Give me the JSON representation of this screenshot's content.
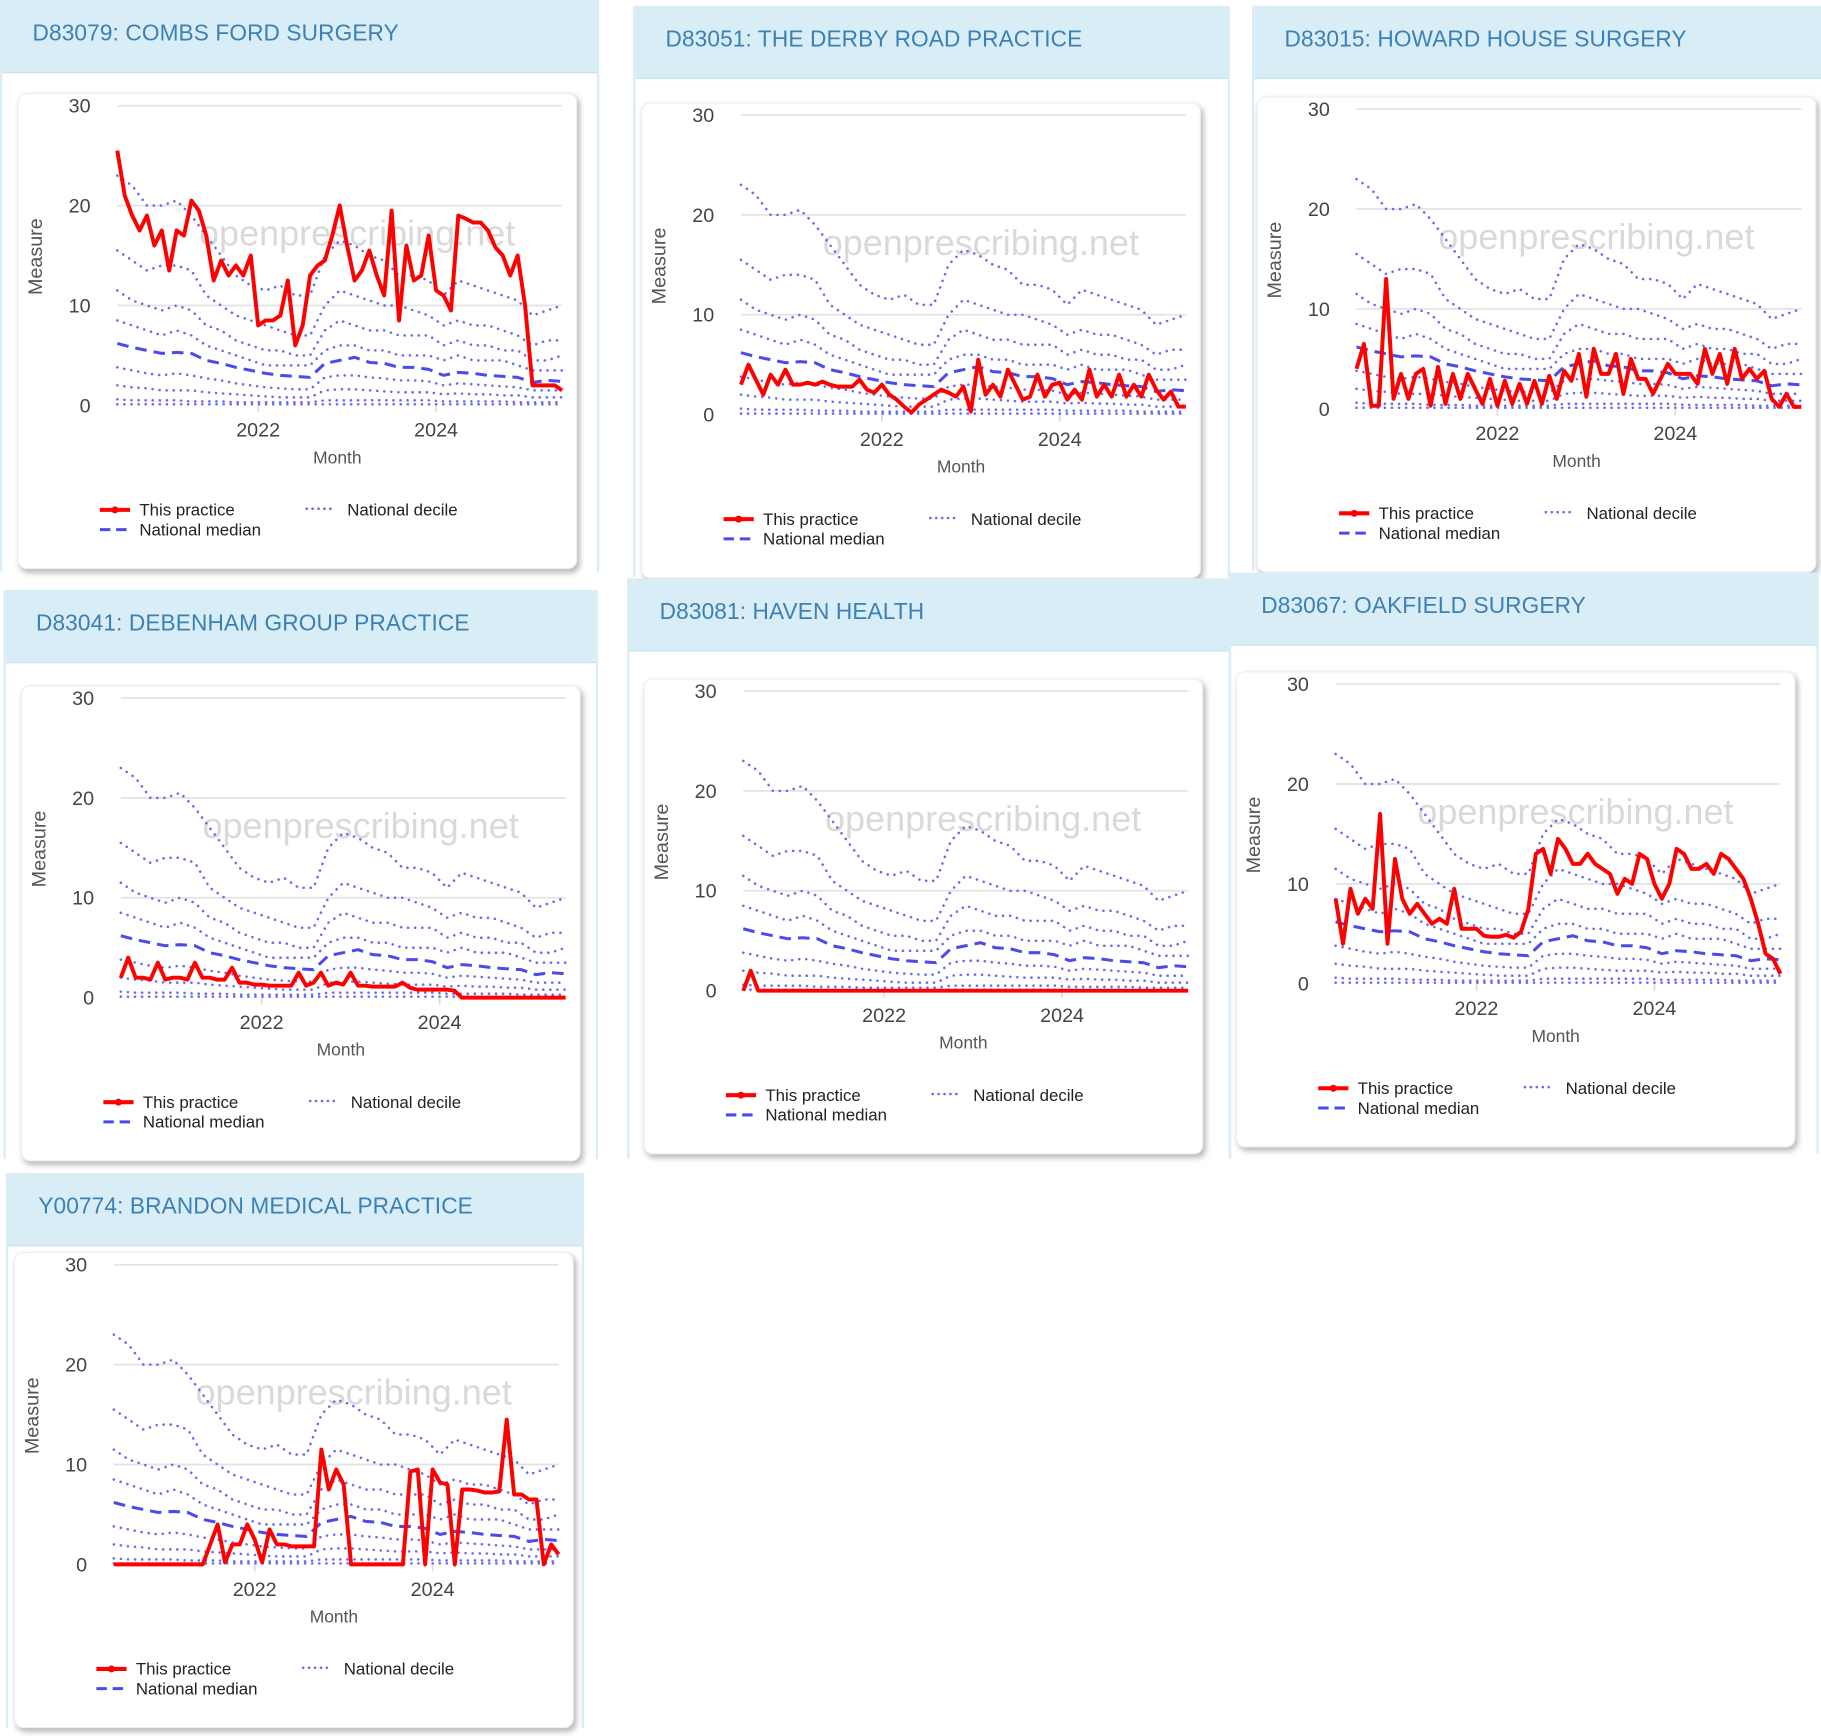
{
  "watermark": "openprescribing.net",
  "chart_data": {
    "type": "line",
    "xlabel": "Month",
    "ylabel": "Measure",
    "ylim": [
      0,
      30
    ],
    "yticks": [
      "0",
      "10",
      "20",
      "30"
    ],
    "xticks": [
      "2022",
      "2024"
    ],
    "xtick_months": [
      "2022-01",
      "2024-01"
    ],
    "grid": true,
    "legend_position": "bottom",
    "legend": {
      "practice": "This practice",
      "decile": "National decile",
      "median": "National median"
    },
    "colors": {
      "practice": "#ff0000",
      "decile": "#6b6bf0",
      "median": "#4b4bec"
    },
    "months": [
      "2020-06",
      "2020-07",
      "2020-08",
      "2020-09",
      "2020-10",
      "2020-11",
      "2020-12",
      "2021-01",
      "2021-02",
      "2021-03",
      "2021-04",
      "2021-05",
      "2021-06",
      "2021-07",
      "2021-08",
      "2021-09",
      "2021-10",
      "2021-11",
      "2021-12",
      "2022-01",
      "2022-02",
      "2022-03",
      "2022-04",
      "2022-05",
      "2022-06",
      "2022-07",
      "2022-08",
      "2022-09",
      "2022-10",
      "2022-11",
      "2022-12",
      "2023-01",
      "2023-02",
      "2023-03",
      "2023-04",
      "2023-05",
      "2023-06",
      "2023-07",
      "2023-08",
      "2023-09",
      "2023-10",
      "2023-11",
      "2023-12",
      "2024-01",
      "2024-02",
      "2024-03",
      "2024-04",
      "2024-05",
      "2024-06",
      "2024-07",
      "2024-08",
      "2024-09",
      "2024-10",
      "2024-11",
      "2024-12",
      "2025-01",
      "2025-02",
      "2025-03",
      "2025-04",
      "2025-05",
      "2025-06"
    ],
    "decile_months": [
      "2020-06",
      "2020-08",
      "2020-10",
      "2020-12",
      "2021-02",
      "2021-04",
      "2021-06",
      "2021-08",
      "2021-10",
      "2021-12",
      "2022-02",
      "2022-04",
      "2022-06",
      "2022-08",
      "2022-10",
      "2022-12",
      "2023-02",
      "2023-04",
      "2023-06",
      "2023-08",
      "2023-10",
      "2023-12",
      "2024-02",
      "2024-04",
      "2024-06",
      "2024-08",
      "2024-10",
      "2024-12",
      "2025-02",
      "2025-04",
      "2025-06"
    ],
    "national_deciles": [
      {
        "decile": 10,
        "values": [
          0.1,
          0.1,
          0.1,
          0.1,
          0.1,
          0.1,
          0.1,
          0.1,
          0.1,
          0.1,
          0.1,
          0.1,
          0.1,
          0.1,
          0.1,
          0.1,
          0.1,
          0.1,
          0.1,
          0.1,
          0.1,
          0.1,
          0.1,
          0.1,
          0.1,
          0.1,
          0.1,
          0.1,
          0.1,
          0.1,
          0.1
        ]
      },
      {
        "decile": 20,
        "values": [
          0.6,
          0.5,
          0.5,
          0.5,
          0.5,
          0.4,
          0.4,
          0.4,
          0.3,
          0.3,
          0.3,
          0.3,
          0.3,
          0.3,
          0.5,
          0.5,
          0.5,
          0.5,
          0.5,
          0.5,
          0.5,
          0.5,
          0.4,
          0.4,
          0.4,
          0.4,
          0.4,
          0.3,
          0.3,
          0.3,
          0.3
        ]
      },
      {
        "decile": 30,
        "values": [
          2,
          1.8,
          1.7,
          1.5,
          1.5,
          1.5,
          1.3,
          1.2,
          1.1,
          1,
          0.9,
          0.8,
          0.8,
          0.8,
          1.5,
          1.6,
          1.6,
          1.5,
          1.4,
          1.3,
          1.3,
          1.3,
          1.1,
          1.2,
          1.1,
          1.1,
          1,
          1,
          0.8,
          0.8,
          0.8
        ]
      },
      {
        "decile": 40,
        "values": [
          3.8,
          3.5,
          3.2,
          3,
          3.2,
          3,
          2.7,
          2.5,
          2.2,
          2,
          1.8,
          1.7,
          1.6,
          1.6,
          2.8,
          3,
          3,
          2.8,
          2.7,
          2.5,
          2.5,
          2.4,
          2,
          2.2,
          2.1,
          2,
          1.9,
          1.8,
          1.5,
          1.5,
          1.5
        ]
      },
      {
        "decile": 60,
        "values": [
          8.5,
          8,
          7.5,
          7,
          7.5,
          7,
          6,
          5.5,
          5,
          4.5,
          4,
          4,
          4,
          4,
          5.5,
          6,
          6,
          5.5,
          5.5,
          5,
          5,
          5,
          4.5,
          5,
          4.5,
          4.5,
          4.5,
          4,
          3.5,
          3.5,
          3.5
        ]
      },
      {
        "decile": 70,
        "values": [
          11.5,
          10.5,
          10,
          9.5,
          10,
          9.5,
          8,
          7.5,
          6.5,
          6,
          5.5,
          5.5,
          5,
          5,
          7.5,
          8.5,
          8,
          7.5,
          7.5,
          7,
          7,
          7,
          6,
          6.5,
          6,
          6,
          5.5,
          5.5,
          4.5,
          4.5,
          5
        ]
      },
      {
        "decile": 80,
        "values": [
          15.5,
          14.5,
          13.5,
          14,
          14,
          13.5,
          11,
          10,
          9,
          8.5,
          8,
          7.5,
          7,
          7,
          10,
          11.5,
          11,
          10.5,
          10,
          10,
          9.5,
          9,
          8,
          8.5,
          8,
          8,
          7.5,
          7,
          6,
          6.5,
          6.5
        ]
      },
      {
        "decile": 90,
        "values": [
          23,
          22,
          20,
          20,
          20.5,
          19,
          17,
          15,
          13,
          12,
          11.5,
          12,
          11,
          11,
          15,
          16.5,
          16,
          15,
          14.5,
          13,
          13,
          12.5,
          11,
          12.5,
          12,
          11.5,
          11,
          10.5,
          9,
          9.5,
          10
        ]
      }
    ],
    "national_median": [
      6.2,
      5.8,
      5.5,
      5.2,
      5.3,
      5.2,
      4.5,
      4.2,
      3.8,
      3.5,
      3.2,
      3.0,
      2.9,
      2.8,
      4.2,
      4.5,
      4.8,
      4.3,
      4.2,
      3.8,
      3.8,
      3.6,
      3.0,
      3.3,
      3.2,
      3.0,
      2.9,
      2.8,
      2.3,
      2.5,
      2.4
    ],
    "practices": [
      {
        "title": "D83079: COMBS FORD SURGERY",
        "values": [
          25.5,
          21,
          19,
          17.5,
          19,
          16,
          17.5,
          13.5,
          17.5,
          17,
          20.5,
          19.5,
          17,
          12.5,
          14.5,
          13,
          14,
          13,
          15,
          8,
          8.5,
          8.5,
          9,
          12.5,
          6,
          8,
          13,
          14,
          14.5,
          17,
          20,
          16,
          12.5,
          13.5,
          15.5,
          13,
          11,
          19.5,
          8.5,
          16,
          12.5,
          13,
          17,
          11.5,
          11,
          9.5,
          19,
          18.7,
          18.3,
          18.3,
          17.5,
          15.8,
          15,
          13,
          15,
          10,
          2,
          2,
          2,
          2,
          1.5
        ]
      },
      {
        "title": "D83051: THE DERBY ROAD PRACTICE",
        "values": [
          3,
          5,
          3.5,
          2,
          4,
          3,
          4.5,
          3,
          3,
          3.2,
          3,
          3.3,
          3,
          2.8,
          2.8,
          2.8,
          3.5,
          2.5,
          2.2,
          3,
          2,
          1.5,
          0.8,
          0.2,
          1,
          1.5,
          2,
          2.5,
          2.2,
          1.8,
          2.8,
          0.3,
          5.5,
          2,
          3,
          1.8,
          4.5,
          3,
          1.5,
          1.8,
          4,
          1.8,
          3,
          3.2,
          1.5,
          2.5,
          1.5,
          4.5,
          1.8,
          3,
          1.8,
          4,
          1.8,
          3,
          1.8,
          4,
          2.5,
          1.5,
          2.3,
          0.8,
          0.8
        ]
      },
      {
        "title": "D83015: HOWARD HOUSE SURGERY",
        "values": [
          4,
          6.5,
          0.3,
          0.3,
          13,
          1,
          3.5,
          1,
          3.5,
          4,
          0.3,
          4.2,
          0.5,
          3.5,
          1,
          3.5,
          2,
          0.5,
          3,
          0.3,
          2.8,
          0.5,
          2.5,
          0.5,
          2.8,
          0.5,
          3.3,
          1,
          3.8,
          2.8,
          5.5,
          1.2,
          6,
          3.5,
          3.5,
          5.5,
          1.5,
          5,
          3,
          3,
          1.5,
          3,
          4.5,
          3.5,
          3.5,
          3.5,
          2.5,
          6,
          3.5,
          5.5,
          2.5,
          6,
          3,
          4,
          3,
          3.8,
          1,
          0.2,
          1.5,
          0.2,
          0.2
        ]
      },
      {
        "title": "D83041: DEBENHAM GROUP PRACTICE",
        "values": [
          2,
          4,
          2,
          2,
          1.8,
          3.5,
          1.8,
          2,
          2,
          1.8,
          3.5,
          2,
          2,
          1.8,
          1.8,
          3,
          1.5,
          1.5,
          1.3,
          1.3,
          1.2,
          1.2,
          1.2,
          1.2,
          2.5,
          1.2,
          1.5,
          2.5,
          1.2,
          1.5,
          1.3,
          2.5,
          1.2,
          1.2,
          1.1,
          1.1,
          1.1,
          1.1,
          1.5,
          1,
          0.8,
          0.8,
          0.8,
          0.8,
          0.8,
          0.7,
          0,
          0,
          0,
          0,
          0,
          0,
          0,
          0,
          0,
          0,
          0,
          0,
          0,
          0,
          0
        ]
      },
      {
        "title": "D83081: HAVEN HEALTH",
        "values": [
          0,
          2,
          0,
          0,
          0,
          0,
          0,
          0,
          0,
          0,
          0,
          0,
          0,
          0,
          0,
          0,
          0,
          0,
          0,
          0,
          0,
          0,
          0,
          0,
          0,
          0,
          0,
          0,
          0,
          0,
          0,
          0,
          0,
          0,
          0,
          0,
          0,
          0,
          0,
          0,
          0,
          0,
          0,
          0,
          0,
          0,
          0,
          0,
          0,
          0,
          0,
          0,
          0,
          0,
          0,
          0,
          0,
          0,
          0,
          0,
          0
        ]
      },
      {
        "title": "D83067: OAKFIELD SURGERY",
        "values": [
          8.5,
          4,
          9.5,
          7,
          8.5,
          7.5,
          17,
          4,
          12.5,
          8.5,
          7,
          8,
          7,
          6,
          6.5,
          6,
          9.5,
          5.5,
          5.5,
          5.5,
          4.8,
          4.7,
          4.7,
          4.9,
          4.6,
          5.2,
          7.5,
          13,
          13.5,
          11,
          14.5,
          13.5,
          12,
          12,
          13,
          12,
          11.5,
          11,
          9,
          10.5,
          10,
          13,
          12.5,
          10,
          8.5,
          10,
          13.5,
          13,
          11.5,
          11.5,
          12,
          11,
          13,
          12.5,
          11.5,
          10.5,
          8.5,
          6,
          3,
          2.5,
          1
        ]
      },
      {
        "title": "Y00774: BRANDON MEDICAL PRACTICE",
        "values": [
          0,
          0,
          0,
          0,
          0,
          0,
          0,
          0,
          0,
          0,
          0,
          0,
          0,
          2,
          4,
          0.2,
          2,
          2,
          4,
          2.5,
          0.2,
          3.5,
          2,
          2,
          1.8,
          1.8,
          1.8,
          1.8,
          11.5,
          7.5,
          9.5,
          8,
          0,
          0,
          0,
          0,
          0,
          0,
          0,
          0,
          9.3,
          9.5,
          0,
          9.5,
          8.2,
          8,
          0,
          7.5,
          7.5,
          7.4,
          7.2,
          7.2,
          7.3,
          14.5,
          7,
          7,
          6.5,
          6.5,
          0,
          2,
          1
        ]
      }
    ]
  }
}
